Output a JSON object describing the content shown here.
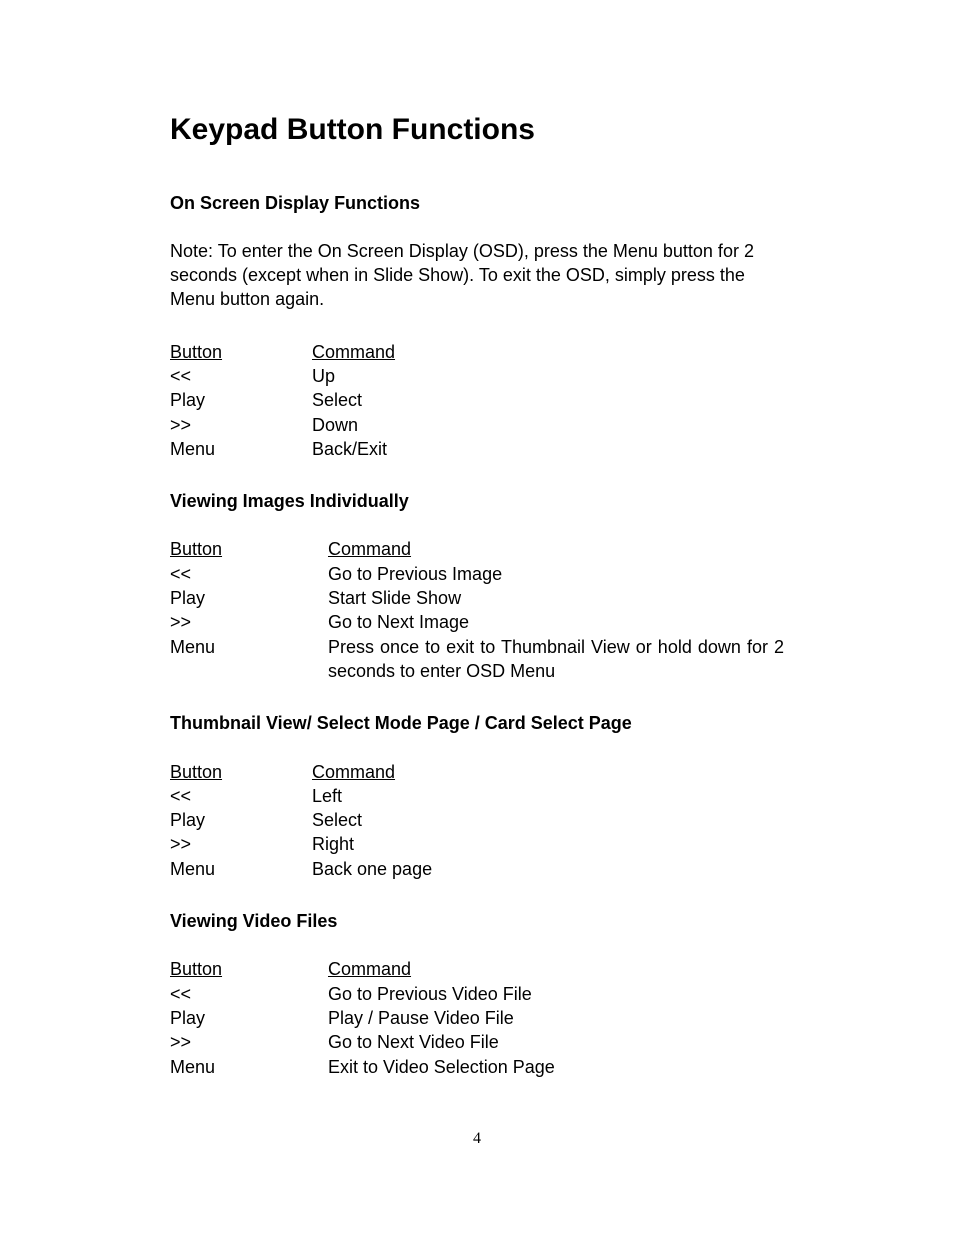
{
  "title": "Keypad Button Functions",
  "page_number": "4",
  "sections": [
    {
      "heading": "On Screen Display Functions",
      "note": "Note: To enter the On Screen Display (OSD), press the Menu button for 2 seconds (except when in Slide Show). To exit the OSD, simply press the Menu button again.",
      "header_button": "Button",
      "header_command": "Command",
      "wide": false,
      "rows": [
        {
          "button": "<<",
          "command": "Up"
        },
        {
          "button": "Play",
          "command": "Select"
        },
        {
          "button": ">>",
          "command": "Down"
        },
        {
          "button": "Menu",
          "command": "Back/Exit"
        }
      ]
    },
    {
      "heading": "Viewing Images Individually",
      "header_button": "Button",
      "header_command": "Command",
      "wide": true,
      "rows": [
        {
          "button": "<<",
          "command": "Go to Previous Image"
        },
        {
          "button": "Play",
          "command": "Start Slide Show"
        },
        {
          "button": ">>",
          "command": "Go to Next Image"
        },
        {
          "button": "Menu",
          "command": "Press once to exit to Thumbnail View or hold down for 2 seconds to enter OSD Menu"
        }
      ]
    },
    {
      "heading": "Thumbnail View/ Select Mode Page / Card Select Page",
      "header_button": "Button",
      "header_command": "Command",
      "wide": false,
      "rows": [
        {
          "button": "<<",
          "command": "Left"
        },
        {
          "button": "Play",
          "command": "Select"
        },
        {
          "button": ">>",
          "command": "Right"
        },
        {
          "button": "Menu",
          "command": "Back one page"
        }
      ]
    },
    {
      "heading": "Viewing Video Files",
      "header_button": "Button",
      "header_command": "Command",
      "wide": true,
      "rows": [
        {
          "button": "<<",
          "command": "Go to Previous Video File"
        },
        {
          "button": "Play",
          "command": "Play / Pause Video File"
        },
        {
          "button": ">>",
          "command": "Go to Next Video File"
        },
        {
          "button": "Menu",
          "command": "Exit to Video Selection Page"
        }
      ]
    }
  ]
}
